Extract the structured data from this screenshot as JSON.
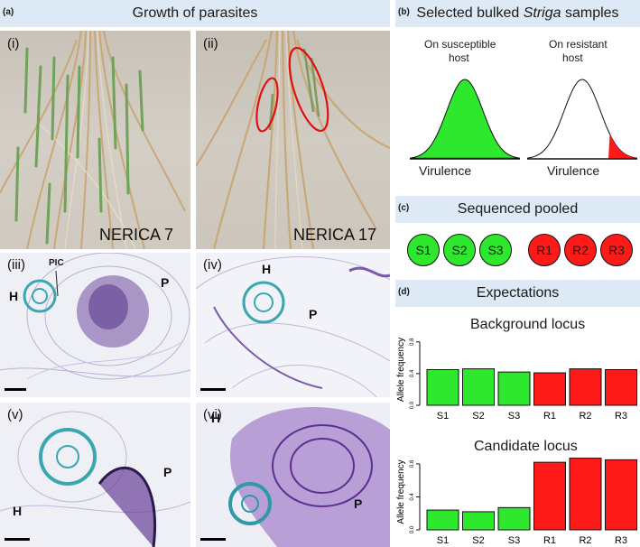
{
  "panel_a": {
    "letter": "(a)",
    "title": "Growth of parasites",
    "photo_i": {
      "roman": "(i)",
      "label": "NERICA 7"
    },
    "photo_ii": {
      "roman": "(ii)",
      "label": "NERICA 17"
    },
    "micro": [
      {
        "roman": "(iii)",
        "labels": [
          "H",
          "P"
        ],
        "pic": "PIC"
      },
      {
        "roman": "(iv)",
        "labels": [
          "H",
          "P"
        ]
      },
      {
        "roman": "(v)",
        "labels": [
          "H",
          "P"
        ]
      },
      {
        "roman": "(vi)",
        "labels": [
          "H",
          "P"
        ]
      }
    ]
  },
  "panel_b": {
    "letter": "(b)",
    "title_pre": "Selected bulked ",
    "title_italic": "Striga",
    "title_post": " samples",
    "left_caption_1": "On susceptible",
    "left_caption_2": "host",
    "right_caption_1": "On resistant",
    "right_caption_2": "host",
    "xlabel": "Virulence"
  },
  "panel_c": {
    "letter": "(c)",
    "title": "Sequenced pooled",
    "samples": [
      "S1",
      "S2",
      "S3",
      "R1",
      "R2",
      "R3"
    ]
  },
  "panel_d": {
    "letter": "(d)",
    "title": "Expectations",
    "colors": {
      "susceptible": "#2ee82e",
      "resistant": "#ff1a1a"
    }
  },
  "chart_data": [
    {
      "type": "bar",
      "title": "Background locus",
      "ylabel": "Allele frequency",
      "categories": [
        "S1",
        "S2",
        "S3",
        "R1",
        "R2",
        "R3"
      ],
      "values": [
        0.45,
        0.46,
        0.42,
        0.41,
        0.46,
        0.45
      ],
      "yticks": [
        "0.0",
        "0.4",
        "0.8"
      ],
      "ylim": [
        0,
        0.9
      ]
    },
    {
      "type": "bar",
      "title": "Candidate locus",
      "ylabel": "Allele frequency",
      "categories": [
        "S1",
        "S2",
        "S3",
        "R1",
        "R2",
        "R3"
      ],
      "values": [
        0.24,
        0.22,
        0.27,
        0.82,
        0.87,
        0.85
      ],
      "yticks": [
        "0.0",
        "0.4",
        "0.8"
      ],
      "ylim": [
        0,
        0.92
      ]
    }
  ]
}
